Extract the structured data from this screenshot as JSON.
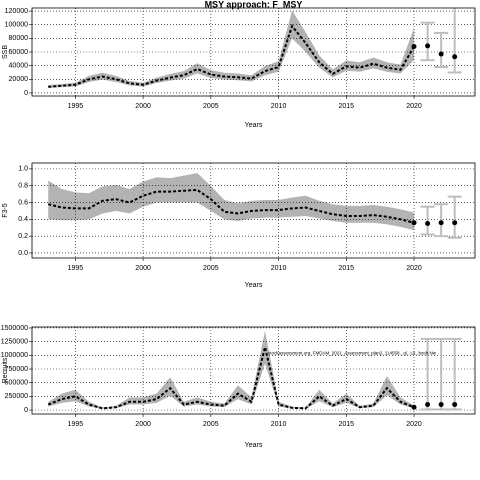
{
  "chart_data": [
    {
      "type": "line",
      "title": "MSY approach: F_MSY",
      "xlabel": "Years",
      "ylabel": "SSB",
      "x": [
        1993,
        1994,
        1995,
        1996,
        1997,
        1998,
        1999,
        2000,
        2001,
        2002,
        2003,
        2004,
        2005,
        2006,
        2007,
        2008,
        2009,
        2010,
        2011,
        2012,
        2013,
        2014,
        2015,
        2016,
        2017,
        2018,
        2019,
        2020
      ],
      "values": [
        9000,
        10500,
        12000,
        20000,
        24000,
        20000,
        14000,
        12000,
        18000,
        22500,
        26000,
        35000,
        27000,
        24000,
        23000,
        21000,
        32000,
        38000,
        98000,
        73000,
        45000,
        28000,
        39000,
        37000,
        43000,
        37000,
        34000,
        68000
      ],
      "lower": [
        7000,
        8500,
        9500,
        16000,
        19500,
        16000,
        11000,
        9500,
        14500,
        18000,
        21000,
        28500,
        22000,
        19500,
        18500,
        17000,
        26000,
        31000,
        80000,
        60000,
        37000,
        23000,
        32500,
        31000,
        36000,
        31000,
        28500,
        48000
      ],
      "upper": [
        11500,
        13000,
        15000,
        25000,
        29500,
        25000,
        17500,
        15000,
        22500,
        28000,
        32000,
        43500,
        33500,
        29500,
        28500,
        26000,
        39500,
        46500,
        121000,
        89000,
        55000,
        34500,
        47500,
        45000,
        52000,
        45000,
        41500,
        95000
      ],
      "proj_x": [
        2021,
        2022,
        2023
      ],
      "proj_values": [
        69000,
        57000,
        53000
      ],
      "proj_lower": [
        48000,
        38000,
        30000
      ],
      "proj_upper": [
        103000,
        88000,
        128000
      ],
      "xlim": [
        1991.8,
        2024.5
      ],
      "ylim": [
        -4500,
        124500
      ],
      "xticks": [
        1995,
        2000,
        2005,
        2010,
        2015,
        2020
      ],
      "yticks": [
        0,
        20000,
        40000,
        60000,
        80000,
        100000,
        120000
      ],
      "line_color": "#000000",
      "band_color": "#b3b3b3",
      "bar_color": "#bebebe",
      "grid": true
    },
    {
      "type": "line",
      "xlabel": "Years",
      "ylabel": "F3-5",
      "x": [
        1993,
        1994,
        1995,
        1996,
        1997,
        1998,
        1999,
        2000,
        2001,
        2002,
        2003,
        2004,
        2005,
        2006,
        2007,
        2008,
        2009,
        2010,
        2011,
        2012,
        2013,
        2014,
        2015,
        2016,
        2017,
        2018,
        2019,
        2020
      ],
      "values": [
        0.58,
        0.54,
        0.53,
        0.53,
        0.62,
        0.64,
        0.6,
        0.68,
        0.73,
        0.73,
        0.74,
        0.75,
        0.64,
        0.49,
        0.47,
        0.5,
        0.51,
        0.51,
        0.53,
        0.54,
        0.5,
        0.46,
        0.44,
        0.44,
        0.45,
        0.43,
        0.4,
        0.36
      ],
      "lower": [
        0.4,
        0.39,
        0.39,
        0.4,
        0.47,
        0.5,
        0.47,
        0.55,
        0.6,
        0.6,
        0.6,
        0.6,
        0.5,
        0.4,
        0.38,
        0.41,
        0.42,
        0.42,
        0.43,
        0.44,
        0.41,
        0.38,
        0.36,
        0.36,
        0.36,
        0.34,
        0.31,
        0.27
      ],
      "upper": [
        0.86,
        0.76,
        0.72,
        0.71,
        0.79,
        0.81,
        0.76,
        0.85,
        0.9,
        0.89,
        0.92,
        0.95,
        0.8,
        0.63,
        0.59,
        0.62,
        0.63,
        0.63,
        0.66,
        0.68,
        0.62,
        0.58,
        0.56,
        0.56,
        0.57,
        0.55,
        0.52,
        0.48
      ],
      "proj_x": [
        2021,
        2022,
        2023
      ],
      "proj_values": [
        0.35,
        0.36,
        0.36
      ],
      "proj_lower": [
        0.22,
        0.2,
        0.18
      ],
      "proj_upper": [
        0.55,
        0.58,
        0.67
      ],
      "xlim": [
        1991.8,
        2024.5
      ],
      "ylim": [
        -0.06,
        1.07
      ],
      "xticks": [
        1995,
        2000,
        2005,
        2010,
        2015,
        2020
      ],
      "yticks": [
        {
          "value": 0,
          "label": "0.0"
        },
        {
          "value": 0.2,
          "label": "0.2"
        },
        {
          "value": 0.4,
          "label": "0.4"
        },
        {
          "value": 0.6,
          "label": "0.6"
        },
        {
          "value": 0.8,
          "label": "0.8"
        },
        {
          "value": 1,
          "label": "1.0"
        }
      ],
      "line_color": "#000000",
      "band_color": "#b3b3b3",
      "bar_color": "#bebebe",
      "grid": true
    },
    {
      "type": "line",
      "xlabel": "Years",
      "ylabel": "Recruits",
      "annotation": "stockassessment.org, FMDAM_2021_Assessment_plan2, 114558...ql...Ul...bzeb.Nw",
      "x": [
        1993,
        1994,
        1995,
        1996,
        1997,
        1998,
        1999,
        2000,
        2001,
        2002,
        2003,
        2004,
        2005,
        2006,
        2007,
        2008,
        2009,
        2010,
        2011,
        2012,
        2013,
        2014,
        2015,
        2016,
        2017,
        2018,
        2019,
        2020
      ],
      "values": [
        100000,
        200000,
        250000,
        100000,
        30000,
        50000,
        150000,
        150000,
        200000,
        400000,
        100000,
        150000,
        100000,
        80000,
        300000,
        150000,
        1150000,
        100000,
        40000,
        30000,
        250000,
        80000,
        200000,
        50000,
        80000,
        400000,
        150000,
        50000
      ],
      "lower": [
        65000,
        130000,
        160000,
        65000,
        20000,
        32000,
        100000,
        100000,
        130000,
        260000,
        65000,
        100000,
        65000,
        52000,
        200000,
        100000,
        850000,
        65000,
        26000,
        20000,
        160000,
        52000,
        130000,
        32000,
        52000,
        270000,
        100000,
        30000
      ],
      "upper": [
        150000,
        300000,
        370000,
        150000,
        45000,
        75000,
        230000,
        230000,
        300000,
        600000,
        150000,
        230000,
        150000,
        120000,
        450000,
        230000,
        1450000,
        150000,
        60000,
        45000,
        370000,
        120000,
        300000,
        75000,
        120000,
        620000,
        230000,
        80000
      ],
      "proj_x": [
        2021,
        2022,
        2023
      ],
      "proj_values": [
        100000,
        100000,
        100000
      ],
      "proj_lower": [
        10000,
        10000,
        10000
      ],
      "proj_upper": [
        1300000,
        1300000,
        1300000
      ],
      "xlim": [
        1991.8,
        2024.5
      ],
      "ylim": [
        -73000,
        1518000
      ],
      "xticks": [
        1995,
        2000,
        2005,
        2010,
        2015,
        2020
      ],
      "yticks": [
        0,
        250000,
        500000,
        750000,
        1000000,
        1250000,
        1500000
      ],
      "line_color": "#000000",
      "band_color": "#b3b3b3",
      "bar_color": "#bebebe",
      "grid": true
    }
  ]
}
